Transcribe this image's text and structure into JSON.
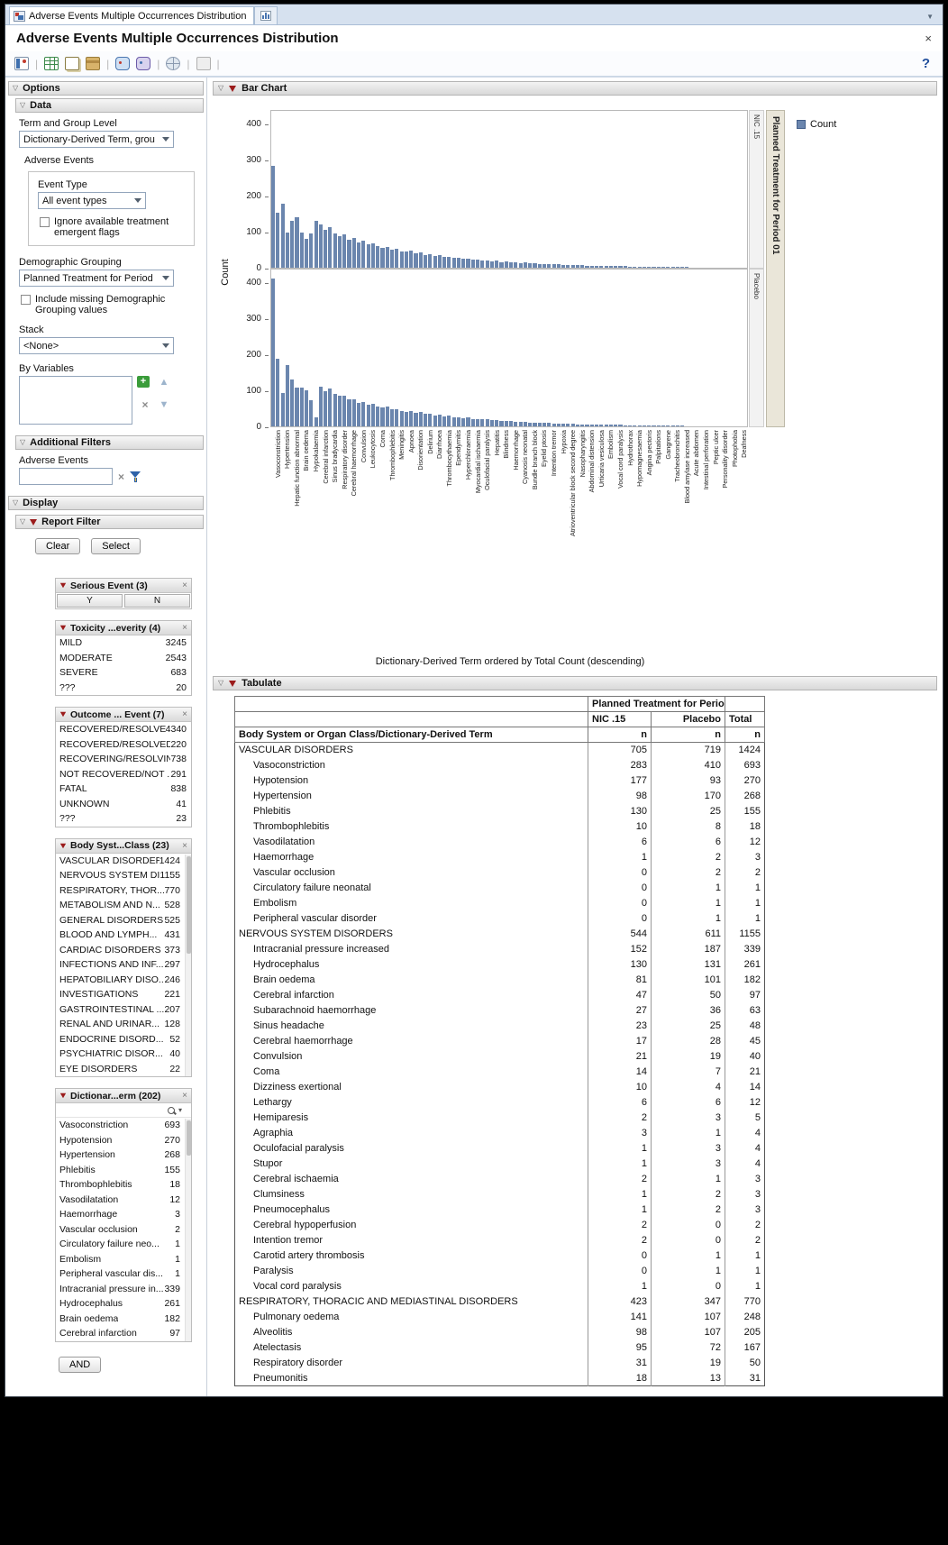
{
  "header": {
    "tab_label": "Adverse Events Multiple Occurrences Distribution",
    "title": "Adverse Events Multiple Occurrences Distribution",
    "close": "×",
    "help": "?",
    "overflow": "▼"
  },
  "toolbar": {
    "icons": [
      "report-icon",
      "new-data-table-icon",
      "copy-report-icon",
      "journal-icon",
      "annotation-icon",
      "annotation-alt-icon",
      "web-report-icon",
      "layout-icon"
    ]
  },
  "options": {
    "title": "Options",
    "data": {
      "title": "Data",
      "term_group_label": "Term and Group Level",
      "term_group_value": "Dictionary-Derived Term, grou",
      "adverse_events_label": "Adverse Events",
      "event_type_label": "Event Type",
      "event_type_value": "All event types",
      "ignore_flags_label": "Ignore available treatment emergent flags",
      "demo_label": "Demographic Grouping",
      "demo_value": "Planned Treatment for Period",
      "include_missing_label": "Include missing Demographic Grouping values",
      "stack_label": "Stack",
      "stack_value": "<None>",
      "by_vars_label": "By Variables"
    },
    "additional_filters": {
      "title": "Additional Filters",
      "label": "Adverse Events"
    },
    "display": {
      "title": "Display"
    },
    "report_filter": {
      "title": "Report Filter",
      "clear": "Clear",
      "select": "Select",
      "and": "AND",
      "cards": [
        {
          "title": "Serious Event (3)",
          "buttons": [
            "Y",
            "N"
          ]
        },
        {
          "title": "Toxicity ...everity (4)",
          "rows": [
            [
              "MILD",
              "3245"
            ],
            [
              "MODERATE",
              "2543"
            ],
            [
              "SEVERE",
              "683"
            ],
            [
              "???",
              "20"
            ]
          ]
        },
        {
          "title": "Outcome ... Event (7)",
          "rows": [
            [
              "RECOVERED/RESOLVED",
              "4340"
            ],
            [
              "RECOVERED/RESOLVED ...",
              "220"
            ],
            [
              "RECOVERING/RESOLVING",
              "738"
            ],
            [
              "NOT RECOVERED/NOT ...",
              "291"
            ],
            [
              "FATAL",
              "838"
            ],
            [
              "UNKNOWN",
              "41"
            ],
            [
              "???",
              "23"
            ]
          ]
        },
        {
          "title": "Body Syst...Class (23)",
          "rows": [
            [
              "VASCULAR DISORDERS",
              "1424"
            ],
            [
              "NERVOUS SYSTEM DI...",
              "1155"
            ],
            [
              "RESPIRATORY, THOR...",
              "770"
            ],
            [
              "METABOLISM AND N...",
              "528"
            ],
            [
              "GENERAL DISORDERS...",
              "525"
            ],
            [
              "BLOOD AND LYMPH...",
              "431"
            ],
            [
              "CARDIAC DISORDERS",
              "373"
            ],
            [
              "INFECTIONS AND INF...",
              "297"
            ],
            [
              "HEPATOBILIARY DISO...",
              "246"
            ],
            [
              "INVESTIGATIONS",
              "221"
            ],
            [
              "GASTROINTESTINAL ...",
              "207"
            ],
            [
              "RENAL AND URINAR...",
              "128"
            ],
            [
              "ENDOCRINE DISORD...",
              "52"
            ],
            [
              "PSYCHIATRIC DISOR...",
              "40"
            ],
            [
              "EYE DISORDERS",
              "22"
            ]
          ]
        },
        {
          "title": "Dictionar...erm (202)",
          "search": true,
          "rows": [
            [
              "Vasoconstriction",
              "693"
            ],
            [
              "Hypotension",
              "270"
            ],
            [
              "Hypertension",
              "268"
            ],
            [
              "Phlebitis",
              "155"
            ],
            [
              "Thrombophlebitis",
              "18"
            ],
            [
              "Vasodilatation",
              "12"
            ],
            [
              "Haemorrhage",
              "3"
            ],
            [
              "Vascular occlusion",
              "2"
            ],
            [
              "Circulatory failure neo...",
              "1"
            ],
            [
              "Embolism",
              "1"
            ],
            [
              "Peripheral vascular dis...",
              "1"
            ],
            [
              "Intracranial pressure in...",
              "339"
            ],
            [
              "Hydrocephalus",
              "261"
            ],
            [
              "Brain oedema",
              "182"
            ],
            [
              "Cerebral infarction",
              "97"
            ]
          ]
        }
      ]
    }
  },
  "bar_chart": {
    "header": "Bar Chart",
    "legend_label": "Count",
    "ylabel": "Count",
    "bar_color": "#6b86ae",
    "group_strip_label": "Planned Treatment for Period 01",
    "caption": "Dictionary-Derived Term ordered by Total Count (descending)",
    "chart_data": {
      "type": "bar",
      "ylim": [
        0,
        440
      ],
      "yticks": [
        0,
        100,
        200,
        300,
        400
      ],
      "panels": [
        {
          "name": "NIC .15",
          "values": [
            283,
            152,
            177,
            98,
            130,
            141,
            98,
            81,
            95,
            130,
            120,
            105,
            112,
            95,
            88,
            92,
            78,
            82,
            70,
            74,
            65,
            68,
            60,
            55,
            58,
            50,
            52,
            46,
            44,
            47,
            40,
            42,
            36,
            38,
            33,
            35,
            30,
            31,
            27,
            28,
            25,
            26,
            22,
            23,
            20,
            21,
            18,
            19,
            16,
            17,
            15,
            15,
            13,
            14,
            12,
            12,
            11,
            10,
            10,
            9,
            9,
            8,
            8,
            7,
            7,
            7,
            6,
            6,
            5,
            5,
            5,
            4,
            4,
            4,
            4,
            3,
            3,
            3,
            3,
            3,
            2,
            2,
            2,
            2,
            2,
            2,
            2,
            2,
            1,
            1,
            1,
            1,
            1,
            1,
            1,
            1,
            1,
            1,
            1,
            1
          ]
        },
        {
          "name": "Placebo",
          "values": [
            410,
            187,
            93,
            170,
            131,
            107,
            107,
            101,
            72,
            25,
            110,
            98,
            104,
            90,
            84,
            86,
            74,
            76,
            66,
            68,
            60,
            62,
            55,
            52,
            54,
            47,
            48,
            43,
            41,
            43,
            37,
            39,
            34,
            35,
            31,
            32,
            28,
            29,
            25,
            26,
            23,
            24,
            21,
            21,
            19,
            19,
            17,
            17,
            15,
            15,
            14,
            13,
            12,
            12,
            11,
            11,
            10,
            9,
            9,
            8,
            8,
            7,
            7,
            7,
            6,
            6,
            6,
            5,
            5,
            5,
            4,
            4,
            4,
            4,
            3,
            3,
            3,
            3,
            3,
            2,
            2,
            2,
            2,
            2,
            2,
            2,
            2,
            1,
            1,
            1,
            1,
            1,
            1,
            1,
            1,
            1,
            1,
            1,
            1,
            1
          ]
        }
      ],
      "x_tick_labels": [
        "Vasoconstriction",
        "Hypertension",
        "Hepatic function abnormal",
        "Brain oedema",
        "Hypokalaemia",
        "Cerebral infarction",
        "Sinus bradycardia",
        "Respiratory disorder",
        "Cerebral haemorrhage",
        "Convulsion",
        "Leukocytosis",
        "Coma",
        "Thrombophlebitis",
        "Meningitis",
        "Apnoea",
        "Disorientation",
        "Delirium",
        "Diarrhoea",
        "Thrombocythaemia",
        "Ependymitis",
        "Hyperchloraemia",
        "Myocardial ischaemia",
        "Oculofacial paralysis",
        "Hepatitis",
        "Blindness",
        "Haemorrhage",
        "Cyanosis neonatal",
        "Bundle branch block",
        "Eyelid ptosis",
        "Intention tremor",
        "Hypoxia",
        "Atrioventricular block second degree",
        "Nasopharyngitis",
        "Abdominal distension",
        "Urticaria vesiculosa",
        "Embolism",
        "Vocal cord paralysis",
        "Hydrothorax",
        "Hypomagnesaemia",
        "Angina pectoris",
        "Palpitations",
        "Gangrene",
        "Tracheobronchitis",
        "Blood amylase increased",
        "Acute abdomen",
        "Intestinal perforation",
        "Peptic ulcer",
        "Personality disorder",
        "Photophobia",
        "Deafness"
      ]
    }
  },
  "tabulate": {
    "title": "Tabulate",
    "group_header": "Planned Treatment for Period 01",
    "col_nic": "NIC .15",
    "col_placebo": "Placebo",
    "col_total": "Total",
    "row_label_header": "Body System or Organ Class/Dictionary-Derived Term",
    "n_label": "n",
    "rows": [
      {
        "l": "VASCULAR DISORDERS",
        "i": 0,
        "v": [
          705,
          719,
          1424
        ]
      },
      {
        "l": "Vasoconstriction",
        "i": 1,
        "v": [
          283,
          410,
          693
        ]
      },
      {
        "l": "Hypotension",
        "i": 1,
        "v": [
          177,
          93,
          270
        ]
      },
      {
        "l": "Hypertension",
        "i": 1,
        "v": [
          98,
          170,
          268
        ]
      },
      {
        "l": "Phlebitis",
        "i": 1,
        "v": [
          130,
          25,
          155
        ]
      },
      {
        "l": "Thrombophlebitis",
        "i": 1,
        "v": [
          10,
          8,
          18
        ]
      },
      {
        "l": "Vasodilatation",
        "i": 1,
        "v": [
          6,
          6,
          12
        ]
      },
      {
        "l": "Haemorrhage",
        "i": 1,
        "v": [
          1,
          2,
          3
        ]
      },
      {
        "l": "Vascular occlusion",
        "i": 1,
        "v": [
          0,
          2,
          2
        ]
      },
      {
        "l": "Circulatory failure neonatal",
        "i": 1,
        "v": [
          0,
          1,
          1
        ]
      },
      {
        "l": "Embolism",
        "i": 1,
        "v": [
          0,
          1,
          1
        ]
      },
      {
        "l": "Peripheral vascular disorder",
        "i": 1,
        "v": [
          0,
          1,
          1
        ]
      },
      {
        "l": "NERVOUS SYSTEM DISORDERS",
        "i": 0,
        "v": [
          544,
          611,
          1155
        ]
      },
      {
        "l": "Intracranial pressure increased",
        "i": 1,
        "v": [
          152,
          187,
          339
        ]
      },
      {
        "l": "Hydrocephalus",
        "i": 1,
        "v": [
          130,
          131,
          261
        ]
      },
      {
        "l": "Brain oedema",
        "i": 1,
        "v": [
          81,
          101,
          182
        ]
      },
      {
        "l": "Cerebral infarction",
        "i": 1,
        "v": [
          47,
          50,
          97
        ]
      },
      {
        "l": "Subarachnoid haemorrhage",
        "i": 1,
        "v": [
          27,
          36,
          63
        ]
      },
      {
        "l": "Sinus headache",
        "i": 1,
        "v": [
          23,
          25,
          48
        ]
      },
      {
        "l": "Cerebral haemorrhage",
        "i": 1,
        "v": [
          17,
          28,
          45
        ]
      },
      {
        "l": "Convulsion",
        "i": 1,
        "v": [
          21,
          19,
          40
        ]
      },
      {
        "l": "Coma",
        "i": 1,
        "v": [
          14,
          7,
          21
        ]
      },
      {
        "l": "Dizziness exertional",
        "i": 1,
        "v": [
          10,
          4,
          14
        ]
      },
      {
        "l": "Lethargy",
        "i": 1,
        "v": [
          6,
          6,
          12
        ]
      },
      {
        "l": "Hemiparesis",
        "i": 1,
        "v": [
          2,
          3,
          5
        ]
      },
      {
        "l": "Agraphia",
        "i": 1,
        "v": [
          3,
          1,
          4
        ]
      },
      {
        "l": "Oculofacial paralysis",
        "i": 1,
        "v": [
          1,
          3,
          4
        ]
      },
      {
        "l": "Stupor",
        "i": 1,
        "v": [
          1,
          3,
          4
        ]
      },
      {
        "l": "Cerebral ischaemia",
        "i": 1,
        "v": [
          2,
          1,
          3
        ]
      },
      {
        "l": "Clumsiness",
        "i": 1,
        "v": [
          1,
          2,
          3
        ]
      },
      {
        "l": "Pneumocephalus",
        "i": 1,
        "v": [
          1,
          2,
          3
        ]
      },
      {
        "l": "Cerebral hypoperfusion",
        "i": 1,
        "v": [
          2,
          0,
          2
        ]
      },
      {
        "l": "Intention tremor",
        "i": 1,
        "v": [
          2,
          0,
          2
        ]
      },
      {
        "l": "Carotid artery thrombosis",
        "i": 1,
        "v": [
          0,
          1,
          1
        ]
      },
      {
        "l": "Paralysis",
        "i": 1,
        "v": [
          0,
          1,
          1
        ]
      },
      {
        "l": "Vocal cord paralysis",
        "i": 1,
        "v": [
          1,
          0,
          1
        ]
      },
      {
        "l": "RESPIRATORY, THORACIC AND MEDIASTINAL DISORDERS",
        "i": 0,
        "v": [
          423,
          347,
          770
        ]
      },
      {
        "l": "Pulmonary oedema",
        "i": 1,
        "v": [
          141,
          107,
          248
        ]
      },
      {
        "l": "Alveolitis",
        "i": 1,
        "v": [
          98,
          107,
          205
        ]
      },
      {
        "l": "Atelectasis",
        "i": 1,
        "v": [
          95,
          72,
          167
        ]
      },
      {
        "l": "Respiratory disorder",
        "i": 1,
        "v": [
          31,
          19,
          50
        ]
      },
      {
        "l": "Pneumonitis",
        "i": 1,
        "v": [
          18,
          13,
          31
        ]
      }
    ]
  }
}
